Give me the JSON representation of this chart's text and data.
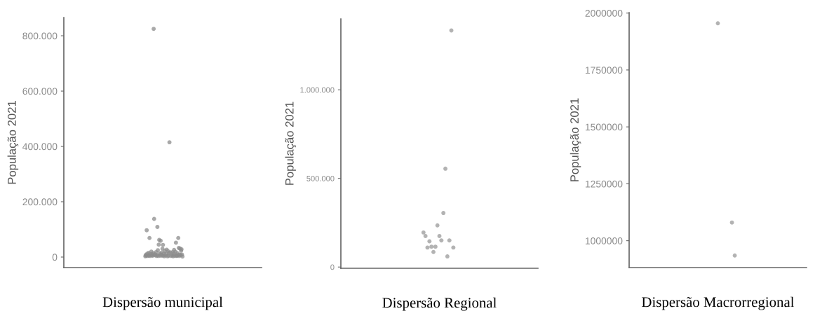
{
  "chart_data": [
    {
      "type": "scatter",
      "xlabel": "Dispersão municipal",
      "ylabel": "População 2021",
      "color": "#8c8c8c",
      "marker": "circle",
      "tick_labels": "y",
      "ylim": [
        -38000,
        866000
      ],
      "yticks": [
        {
          "value": 0,
          "label": "0"
        },
        {
          "value": 200000,
          "label": "200.000"
        },
        {
          "value": 400000,
          "label": "400.000"
        },
        {
          "value": 600000,
          "label": "600.000"
        },
        {
          "value": 800000,
          "label": "800.000"
        }
      ],
      "categories": [
        null,
        null,
        null,
        null,
        null,
        null,
        null,
        null,
        null,
        null,
        null,
        null,
        null,
        null,
        null,
        null,
        null,
        null,
        null,
        null,
        null,
        null,
        null,
        null,
        null,
        null,
        null,
        null,
        null,
        null,
        null,
        null,
        null,
        null,
        null,
        null,
        null,
        null,
        null,
        null,
        null,
        null,
        null,
        null,
        null,
        null,
        null,
        null,
        null,
        null,
        null,
        null,
        null,
        null,
        null,
        null,
        null,
        null,
        null,
        null,
        null,
        null,
        null,
        null,
        null,
        null,
        null,
        null,
        null,
        null,
        null,
        null,
        null,
        null,
        null,
        null,
        null,
        null,
        null,
        null,
        null,
        null,
        null,
        null,
        null,
        null,
        null,
        null,
        null,
        null,
        null,
        null,
        null,
        null,
        null,
        null,
        null,
        null,
        null,
        null,
        null,
        null,
        null,
        null,
        null,
        null,
        null,
        null,
        null,
        null,
        null,
        null,
        null,
        null,
        null,
        null,
        null,
        null,
        null,
        null,
        null,
        null,
        null,
        null,
        null,
        null,
        null,
        null,
        null,
        null,
        null,
        null,
        null,
        null,
        null,
        null,
        null,
        null,
        null,
        null,
        null,
        null,
        null,
        null,
        null,
        null,
        null,
        null,
        null,
        null,
        null,
        null,
        null,
        null,
        null,
        null,
        null,
        null,
        null,
        null,
        null,
        null,
        null,
        null,
        null,
        null,
        null,
        null,
        null,
        null,
        null,
        null,
        null,
        null,
        null,
        null,
        null,
        null,
        null,
        null,
        null,
        null,
        null,
        null,
        null,
        null,
        null,
        null,
        null,
        null,
        null,
        null,
        null,
        null,
        null,
        null,
        null,
        null,
        null,
        null,
        null,
        null,
        null,
        null,
        null,
        null,
        null,
        null,
        null,
        null,
        null,
        null,
        null,
        null,
        null,
        null,
        null,
        null,
        null,
        null,
        null,
        null,
        null,
        null,
        null,
        null,
        null,
        null,
        null,
        null,
        null,
        null,
        null,
        null,
        null,
        null,
        null,
        null,
        null,
        null,
        null,
        null,
        null,
        null,
        null,
        null,
        null,
        null,
        null,
        null,
        null,
        null,
        null,
        null,
        null,
        null,
        null,
        null,
        null,
        null,
        null,
        null,
        null,
        null,
        null,
        null,
        null,
        null,
        null,
        null,
        null,
        null,
        null,
        null,
        null,
        null,
        null,
        null,
        null,
        null,
        null,
        null,
        null,
        null,
        null,
        null,
        null,
        null,
        null,
        null,
        null,
        null,
        null,
        null,
        null,
        null,
        null,
        null,
        null,
        null,
        null,
        null,
        null,
        null,
        null,
        null,
        null,
        null,
        null,
        null,
        null,
        null,
        null,
        null,
        null,
        null,
        null,
        null,
        null,
        null,
        null,
        null,
        null,
        null,
        null,
        null,
        null,
        null,
        null,
        null,
        null,
        null,
        null,
        null,
        null,
        null,
        null,
        null,
        null,
        null,
        null,
        null,
        null,
        null,
        null,
        null,
        null,
        null,
        null,
        null,
        null,
        null,
        null,
        null,
        null,
        null,
        null,
        null,
        null,
        null,
        null,
        null,
        null,
        null,
        null,
        null,
        null,
        null,
        null,
        null,
        null,
        null,
        null,
        null,
        null,
        null,
        null,
        null,
        null,
        null,
        null,
        null,
        null,
        null,
        null,
        null,
        null,
        null,
        null,
        null,
        null,
        null,
        null,
        null,
        null,
        null,
        null,
        null,
        null,
        null,
        null,
        null,
        null,
        null,
        null,
        null,
        null,
        null,
        null,
        null,
        null,
        null,
        null,
        null,
        null,
        null,
        null,
        null,
        null,
        null,
        null,
        null,
        null,
        null,
        null,
        null
      ],
      "values": [
        null,
        null,
        null,
        null,
        null,
        null,
        null,
        null,
        null,
        null,
        null,
        null,
        null,
        null,
        null,
        null,
        null,
        null,
        null,
        null,
        null,
        null,
        null,
        null,
        null,
        null,
        null,
        null,
        null,
        null,
        null,
        null,
        null,
        null,
        null,
        null,
        null,
        null,
        null,
        null,
        null,
        null,
        null,
        null,
        null,
        null,
        null,
        null,
        null,
        null,
        null,
        null,
        null,
        null,
        null,
        null,
        null,
        null,
        null,
        null,
        null,
        null,
        null,
        null,
        null,
        null,
        null,
        null,
        null,
        null,
        null,
        null,
        null,
        null,
        null,
        null,
        null,
        null,
        null,
        null,
        null,
        null,
        null,
        null,
        null,
        null,
        null,
        null,
        null,
        null,
        null,
        null,
        null,
        null,
        null,
        null,
        null,
        null,
        null,
        null,
        null,
        null,
        null,
        null,
        null,
        null,
        null,
        null,
        null,
        null,
        null,
        null,
        null,
        null,
        null,
        null,
        null,
        null,
        null,
        null,
        null,
        null,
        null,
        null,
        null,
        null,
        null,
        null,
        null,
        null,
        null,
        null,
        null,
        null,
        null,
        null,
        null,
        null,
        null,
        null,
        null,
        null,
        null,
        null,
        null,
        null,
        null,
        null,
        null,
        null,
        null,
        null,
        null,
        null,
        null,
        null,
        null,
        null,
        null,
        null,
        null,
        null,
        null,
        null,
        null,
        null,
        null,
        null,
        null,
        null,
        null,
        null,
        null,
        null,
        null,
        3000,
        8000,
        5000,
        97000,
        12000,
        4000,
        null,
        15000,
        6000,
        69000,
        4000,
        11000,
        null,
        20000,
        6000,
        10000,
        5000,
        14000,
        825000,
        138000,
        7000,
        10000,
        null,
        18000,
        4000,
        7000,
        109000,
        25000,
        4000,
        45000,
        62000,
        13000,
        5000,
        59000,
        9000,
        16000,
        5000,
        30000,
        44000,
        6000,
        13000,
        3000,
        22000,
        null,
        6000,
        11000,
        27000,
        null,
        3000,
        21000,
        5000,
        15000,
        415000,
        null,
        17000,
        4000,
        null,
        null,
        6000,
        18000,
        3000,
        12000,
        26000,
        5000,
        null,
        19000,
        52000,
        4000,
        5000,
        14000,
        7000,
        69000,
        33000,
        4000,
        9000,
        31000,
        7000,
        23000,
        28000,
        9000,
        2000,
        null,
        null,
        null,
        null,
        null,
        null,
        null,
        null,
        null,
        null,
        null,
        null,
        null,
        null,
        null,
        null,
        null,
        null,
        null,
        null,
        null,
        null,
        null,
        null,
        null,
        null,
        null,
        null,
        null,
        null,
        null,
        null,
        null,
        null,
        null,
        null,
        null,
        null,
        null,
        null,
        null,
        null,
        null,
        null,
        null,
        null,
        null,
        null,
        null,
        null,
        null,
        null,
        null,
        null,
        null,
        null,
        null,
        null,
        null,
        null,
        null,
        null,
        null,
        null,
        null,
        null,
        null,
        null,
        null,
        null,
        null,
        null,
        null,
        null,
        null,
        null,
        null,
        null,
        null,
        null,
        null,
        null,
        null,
        null,
        null,
        null,
        null,
        null,
        null,
        null,
        null,
        null,
        null,
        null,
        null,
        null,
        null,
        null,
        null,
        null,
        null,
        null,
        null,
        null,
        null,
        null,
        null,
        null,
        null,
        null,
        null,
        null,
        null,
        null,
        null,
        null,
        null,
        null,
        null,
        null,
        null,
        null,
        null,
        null,
        null,
        null,
        null,
        null,
        null,
        null,
        null,
        null,
        null,
        null,
        null,
        null,
        null,
        null,
        null,
        null,
        null,
        null,
        null,
        null,
        null,
        null,
        null,
        null,
        null,
        null,
        null,
        null,
        null,
        null,
        null,
        null,
        null,
        null,
        null,
        null,
        null,
        null,
        null,
        null,
        null,
        null,
        null,
        null,
        null,
        null
      ]
    },
    {
      "type": "scatter",
      "xlabel": "Dispersão Regional",
      "ylabel": "População 2021",
      "color": "#9a9a9a",
      "marker": "circle",
      "tick_labels": "y",
      "ylim": [
        -7000,
        1400000
      ],
      "yticks": [
        {
          "value": 0,
          "label": "0"
        },
        {
          "value": 500000,
          "label": "500.000"
        },
        {
          "value": 1000000,
          "label": "1.000.000"
        }
      ],
      "categories": [
        null,
        null,
        null,
        null,
        null,
        null,
        null,
        null,
        null,
        null,
        null,
        null,
        null,
        null,
        null,
        null,
        null,
        null,
        null,
        null,
        null,
        null,
        null,
        null,
        null,
        null,
        null,
        null,
        null,
        null,
        null,
        null,
        null,
        null,
        null,
        null,
        null,
        null,
        null,
        null,
        null,
        null,
        null,
        null,
        null,
        null,
        null,
        null,
        null,
        null,
        null,
        null,
        null,
        null,
        null,
        null,
        null,
        null,
        null,
        null,
        null,
        null,
        null,
        null,
        null,
        null,
        null,
        null,
        null,
        null,
        null,
        null,
        null,
        null,
        null,
        null,
        null,
        null,
        null,
        null,
        null,
        null,
        null,
        null,
        null,
        null,
        null,
        null,
        null,
        null,
        null,
        null,
        null,
        null,
        null,
        null,
        null,
        null,
        null
      ],
      "values": [
        null,
        null,
        null,
        null,
        null,
        null,
        null,
        null,
        null,
        null,
        null,
        null,
        null,
        null,
        null,
        null,
        null,
        null,
        null,
        null,
        null,
        null,
        null,
        null,
        null,
        null,
        null,
        null,
        null,
        null,
        null,
        null,
        null,
        null,
        null,
        null,
        null,
        null,
        null,
        null,
        null,
        195000,
        175000,
        110000,
        145000,
        115000,
        85000,
        115000,
        235000,
        175000,
        150000,
        305000,
        555000,
        60000,
        150000,
        1335000,
        110000,
        null,
        null,
        null,
        null,
        null,
        null,
        null,
        null,
        null,
        null,
        null,
        null,
        null,
        null,
        null,
        null,
        null,
        null,
        null,
        null,
        null,
        null,
        null,
        null,
        null,
        null,
        null,
        null,
        null,
        null,
        null,
        null,
        null,
        null,
        null,
        null,
        null,
        null,
        null,
        null,
        null,
        null
      ]
    },
    {
      "type": "scatter",
      "xlabel": "Dispersão Macrorregional",
      "ylabel": "População 2021",
      "color": "#9a9a9a",
      "marker": "circle",
      "tick_labels": "y",
      "ylim": [
        882000,
        2002000
      ],
      "yticks": [
        {
          "value": 1000000,
          "label": "1000000"
        },
        {
          "value": 1250000,
          "label": "1250000"
        },
        {
          "value": 1500000,
          "label": "1500000"
        },
        {
          "value": 1750000,
          "label": "1750000"
        },
        {
          "value": 2000000,
          "label": "2000000"
        }
      ],
      "categories": [
        null,
        null,
        null,
        null,
        null,
        null,
        null,
        null,
        null,
        null,
        null,
        null,
        null,
        null,
        null,
        null,
        null,
        null,
        null,
        null,
        null,
        null,
        null,
        null,
        null,
        null,
        null,
        null,
        null,
        null,
        null,
        null,
        null,
        null,
        null,
        null,
        null,
        null,
        null,
        null,
        null,
        null,
        null,
        null,
        null,
        null,
        null,
        null,
        null,
        null,
        null,
        null,
        null,
        null,
        null,
        null,
        null,
        null,
        null,
        null,
        null,
        null,
        null
      ],
      "values": [
        null,
        null,
        null,
        null,
        null,
        null,
        null,
        null,
        null,
        null,
        null,
        null,
        null,
        null,
        null,
        null,
        null,
        null,
        null,
        null,
        null,
        null,
        null,
        null,
        null,
        null,
        null,
        null,
        null,
        null,
        null,
        1955000,
        null,
        null,
        null,
        null,
        1080000,
        935000,
        null,
        null,
        null,
        null,
        null,
        null,
        null,
        null,
        null,
        null,
        null,
        null,
        null,
        null,
        null,
        null,
        null,
        null,
        null,
        null,
        null,
        null,
        null,
        null,
        null
      ]
    }
  ]
}
